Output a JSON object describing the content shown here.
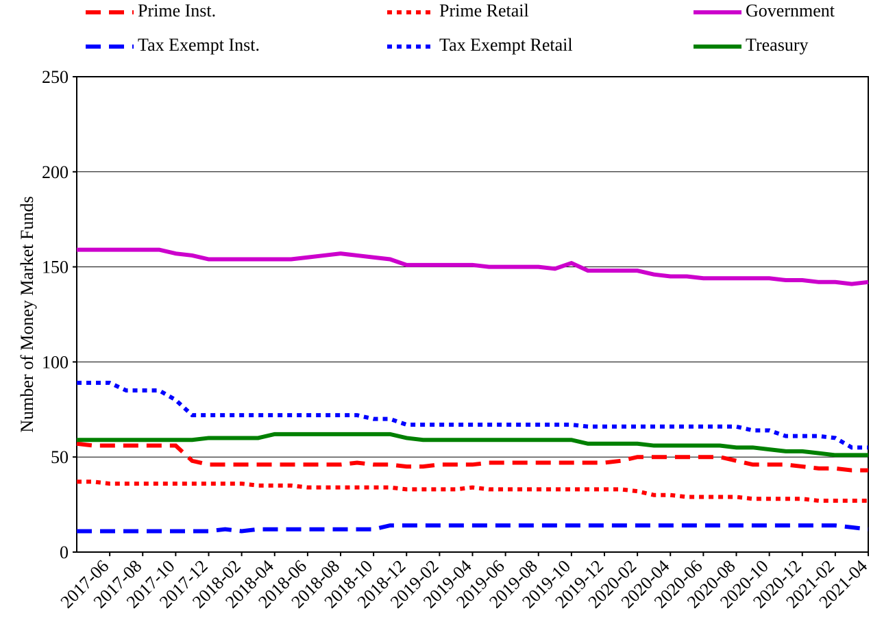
{
  "chart_data": {
    "type": "line",
    "y_label": "Number of Money Market Funds",
    "categories": [
      null,
      null,
      "2017-06",
      null,
      "2017-08",
      null,
      "2017-10",
      null,
      "2017-12",
      null,
      "2018-02",
      null,
      "2018-04",
      null,
      "2018-06",
      null,
      "2018-08",
      null,
      "2018-10",
      null,
      "2018-12",
      null,
      "2019-02",
      null,
      "2019-04",
      null,
      "2019-06",
      null,
      "2019-08",
      null,
      "2019-10",
      null,
      "2019-12",
      null,
      "2020-02",
      null,
      "2020-04",
      null,
      "2020-06",
      null,
      "2020-08",
      null,
      "2020-10",
      null,
      "2020-12",
      null,
      "2021-02",
      null,
      "2021-04"
    ],
    "ylim": [
      0,
      250
    ],
    "yticks": [
      0,
      50,
      100,
      150,
      200,
      250
    ],
    "grid": true,
    "series": [
      {
        "name": "Prime Inst.",
        "color": "#ff0000",
        "dash": "dashed",
        "values": [
          57,
          56,
          56,
          56,
          56,
          56,
          56,
          48,
          46,
          46,
          46,
          46,
          46,
          46,
          46,
          46,
          46,
          47,
          46,
          46,
          45,
          45,
          46,
          46,
          46,
          47,
          47,
          47,
          47,
          47,
          47,
          47,
          47,
          48,
          50,
          50,
          50,
          50,
          50,
          50,
          48,
          46,
          46,
          46,
          45,
          44,
          44,
          43,
          43
        ]
      },
      {
        "name": "Prime Retail",
        "color": "#ff0000",
        "dash": "dotted",
        "values": [
          37,
          37,
          36,
          36,
          36,
          36,
          36,
          36,
          36,
          36,
          36,
          35,
          35,
          35,
          34,
          34,
          34,
          34,
          34,
          34,
          33,
          33,
          33,
          33,
          34,
          33,
          33,
          33,
          33,
          33,
          33,
          33,
          33,
          33,
          32,
          30,
          30,
          29,
          29,
          29,
          29,
          28,
          28,
          28,
          28,
          27,
          27,
          27,
          27
        ]
      },
      {
        "name": "Government",
        "color": "#cc00cc",
        "dash": "solid",
        "values": [
          159,
          159,
          159,
          159,
          159,
          159,
          157,
          156,
          154,
          154,
          154,
          154,
          154,
          154,
          155,
          156,
          157,
          156,
          155,
          154,
          151,
          151,
          151,
          151,
          151,
          150,
          150,
          150,
          150,
          149,
          152,
          148,
          148,
          148,
          148,
          146,
          145,
          145,
          144,
          144,
          144,
          144,
          144,
          143,
          143,
          142,
          142,
          141,
          142
        ]
      },
      {
        "name": "Tax Exempt Inst.",
        "color": "#0000ff",
        "dash": "dashed",
        "values": [
          11,
          11,
          11,
          11,
          11,
          11,
          11,
          11,
          11,
          12,
          11,
          12,
          12,
          12,
          12,
          12,
          12,
          12,
          12,
          14,
          14,
          14,
          14,
          14,
          14,
          14,
          14,
          14,
          14,
          14,
          14,
          14,
          14,
          14,
          14,
          14,
          14,
          14,
          14,
          14,
          14,
          14,
          14,
          14,
          14,
          14,
          14,
          13,
          12
        ]
      },
      {
        "name": "Tax Exempt Retail",
        "color": "#0000ff",
        "dash": "dotted",
        "values": [
          89,
          89,
          89,
          85,
          85,
          85,
          80,
          72,
          72,
          72,
          72,
          72,
          72,
          72,
          72,
          72,
          72,
          72,
          70,
          70,
          67,
          67,
          67,
          67,
          67,
          67,
          67,
          67,
          67,
          67,
          67,
          66,
          66,
          66,
          66,
          66,
          66,
          66,
          66,
          66,
          66,
          64,
          64,
          61,
          61,
          61,
          60,
          55,
          55
        ]
      },
      {
        "name": "Treasury",
        "color": "#008000",
        "dash": "solid",
        "values": [
          59,
          59,
          59,
          59,
          59,
          59,
          59,
          59,
          60,
          60,
          60,
          60,
          62,
          62,
          62,
          62,
          62,
          62,
          62,
          62,
          60,
          59,
          59,
          59,
          59,
          59,
          59,
          59,
          59,
          59,
          59,
          57,
          57,
          57,
          57,
          56,
          56,
          56,
          56,
          56,
          55,
          55,
          54,
          53,
          53,
          52,
          51,
          51,
          51
        ]
      }
    ]
  }
}
